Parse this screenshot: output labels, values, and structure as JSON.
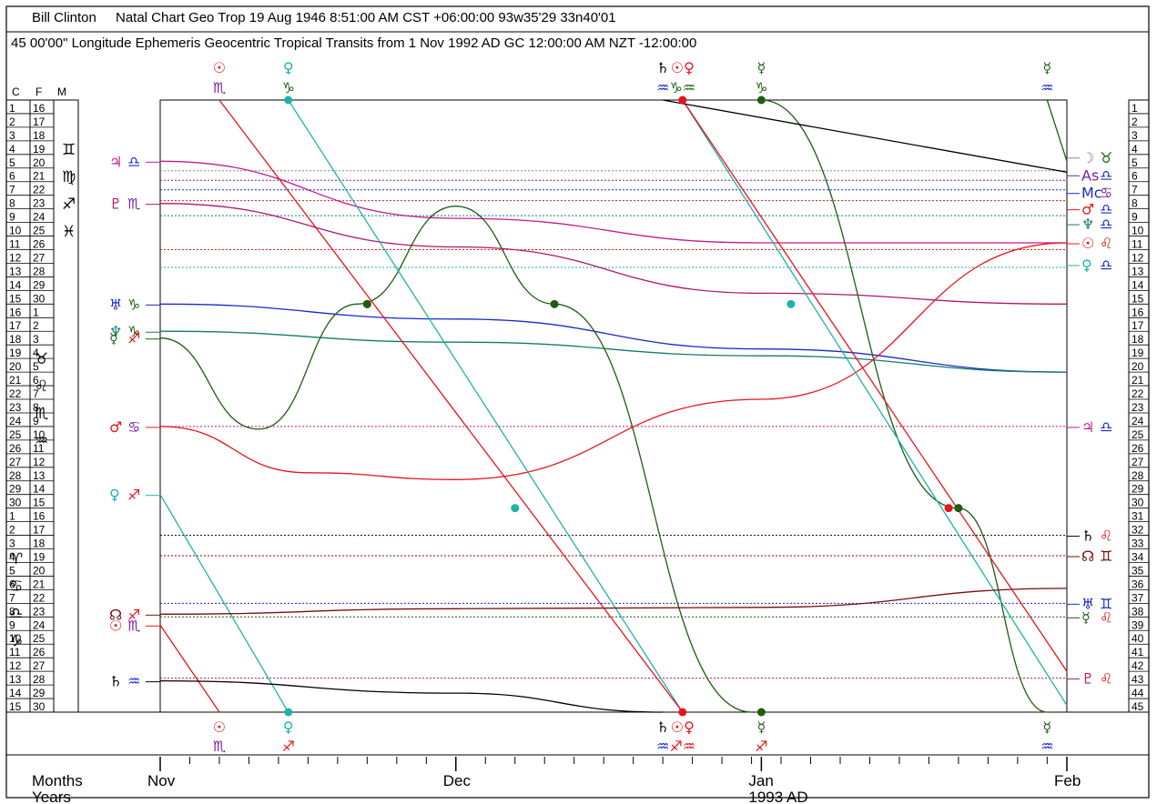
{
  "header": {
    "line1_name": "Bill Clinton",
    "line1_text": "Natal Chart Geo Trop 19 Aug 1946 8:51:00 AM CST +06:00:00 93w35'29 33n40'01",
    "line2_text": "45 00'00\" Longitude Ephemeris Geocentric Tropical Transits from 1 Nov 1992 AD GC 12:00:00 AM NZT -12:00:00"
  },
  "scale_headers": [
    "C",
    "F",
    "M"
  ],
  "colors": {
    "sun": "#e8141b",
    "venus": "#1fb3a6",
    "mercury": "#1f5c12",
    "saturn": "#000000",
    "jupiter": "#c41a8c",
    "pluto": "#b0176a",
    "uranus": "#1c28c8",
    "neptune": "#0f7c6e",
    "mars": "#e8141b",
    "node": "#7a0c0c",
    "sign_blue": "#1c28c8",
    "sign_purple": "#7a1fa0",
    "sign_red": "#e8141b",
    "sign_green": "#1f5c12"
  },
  "x_axis": {
    "rows": [
      "Months",
      "Years"
    ],
    "month_labels": [
      "Nov",
      "Dec",
      "Jan",
      "Feb"
    ],
    "year_label": "1993 AD"
  },
  "left_col_labels": {
    "cardinal": [
      "1",
      "2",
      "3",
      "4",
      "5",
      "6",
      "7",
      "8",
      "9",
      "10",
      "11",
      "12",
      "13",
      "14",
      "15"
    ],
    "fixed_first": [
      "16",
      "17",
      "18",
      "19",
      "20",
      "21",
      "22",
      "23",
      "24",
      "25",
      "26",
      "27",
      "28",
      "29",
      "30"
    ],
    "signs_top": [
      "♊",
      "♍",
      "♐",
      "♓"
    ],
    "signs_mid": [
      "♉",
      "♌",
      "♏",
      "♒"
    ],
    "signs_bot": [
      "♈",
      "♋",
      "♎",
      "♑"
    ]
  },
  "right_col_labels": [
    "1",
    "2",
    "3",
    "4",
    "5",
    "6",
    "7",
    "8",
    "9",
    "10",
    "11",
    "12",
    "13",
    "14",
    "15",
    "16",
    "17",
    "18",
    "19",
    "20",
    "21",
    "22",
    "23",
    "24",
    "25",
    "26",
    "27",
    "28",
    "29",
    "30",
    "31",
    "32",
    "33",
    "34",
    "35",
    "36",
    "37",
    "38",
    "39",
    "40",
    "41",
    "42",
    "43",
    "44",
    "45"
  ],
  "left_planets": [
    {
      "planet": "♃",
      "sign": "♎",
      "planet_color": "#c41a8c",
      "sign_color": "#1c28c8"
    },
    {
      "planet": "♇",
      "sign": "♏",
      "planet_color": "#b0176a",
      "sign_color": "#7a1fa0"
    },
    {
      "planet": "♅",
      "sign": "♑",
      "planet_color": "#1c28c8",
      "sign_color": "#1f5c12"
    },
    {
      "planet": "♆",
      "sign": "♑",
      "planet_color": "#0f7c6e",
      "sign_color": "#1f5c12"
    },
    {
      "planet": "☿",
      "sign": "♐",
      "planet_color": "#1f5c12",
      "sign_color": "#e8141b"
    },
    {
      "planet": "♂",
      "sign": "♋",
      "planet_color": "#e8141b",
      "sign_color": "#7a1fa0"
    },
    {
      "planet": "♀",
      "sign": "♐",
      "planet_color": "#1fb3a6",
      "sign_color": "#e8141b"
    },
    {
      "planet": "☊",
      "sign": "♐",
      "planet_color": "#7a0c0c",
      "sign_color": "#e8141b"
    },
    {
      "planet": "☉",
      "sign": "♏",
      "planet_color": "#e8141b",
      "sign_color": "#7a1fa0"
    },
    {
      "planet": "♄",
      "sign": "♒",
      "planet_color": "#000000",
      "sign_color": "#1c28c8"
    }
  ],
  "right_natal": [
    {
      "planet": "☽",
      "sign": "♉",
      "planet_color": "#888888",
      "sign_color": "#1f5c12"
    },
    {
      "planet": "As",
      "sign": "♎",
      "planet_color": "#7a1fa0",
      "sign_color": "#1c28c8"
    },
    {
      "planet": "Mc",
      "sign": "♋",
      "planet_color": "#1c28c8",
      "sign_color": "#7a1fa0"
    },
    {
      "planet": "♂",
      "sign": "♎",
      "planet_color": "#e8141b",
      "sign_color": "#1c28c8"
    },
    {
      "planet": "♆",
      "sign": "♎",
      "planet_color": "#0f7c6e",
      "sign_color": "#1c28c8"
    },
    {
      "planet": "☉",
      "sign": "♌",
      "planet_color": "#e8141b",
      "sign_color": "#e8141b"
    },
    {
      "planet": "♀",
      "sign": "♎",
      "planet_color": "#1fb3a6",
      "sign_color": "#1c28c8"
    },
    {
      "planet": "♃",
      "sign": "♎",
      "planet_color": "#c41a8c",
      "sign_color": "#1c28c8"
    },
    {
      "planet": "♄",
      "sign": "♌",
      "planet_color": "#000000",
      "sign_color": "#e8141b"
    },
    {
      "planet": "☊",
      "sign": "♊",
      "planet_color": "#7a0c0c",
      "sign_color": "#7a0c0c"
    },
    {
      "planet": "♅",
      "sign": "♊",
      "planet_color": "#1c28c8",
      "sign_color": "#1c28c8"
    },
    {
      "planet": "☿",
      "sign": "♌",
      "planet_color": "#1f5c12",
      "sign_color": "#e8141b"
    },
    {
      "planet": "♇",
      "sign": "♌",
      "planet_color": "#b0176a",
      "sign_color": "#e8141b"
    }
  ],
  "top_labels": [
    {
      "planet": "☉",
      "sign": "♏",
      "planet_color": "#e8141b",
      "sign_color": "#7a1fa0"
    },
    {
      "planet": "♀",
      "sign": "♑",
      "planet_color": "#1fb3a6",
      "sign_color": "#1f5c12"
    },
    {
      "planet": "♄",
      "sign": "♒",
      "planet_color": "#000000",
      "sign_color": "#1c28c8"
    },
    {
      "planet": "☉♀",
      "sign": "♑♒",
      "planet_color": "#e8141b",
      "sign_color": "#1f5c12"
    },
    {
      "planet": "☿",
      "sign": "♑",
      "planet_color": "#1f5c12",
      "sign_color": "#1f5c12"
    },
    {
      "planet": "☿",
      "sign": "♒",
      "planet_color": "#1f5c12",
      "sign_color": "#1c28c8"
    }
  ],
  "bottom_labels": [
    {
      "planet": "☉",
      "sign": "♏",
      "planet_color": "#e8141b",
      "sign_color": "#7a1fa0"
    },
    {
      "planet": "♀",
      "sign": "♐",
      "planet_color": "#1fb3a6",
      "sign_color": "#e8141b"
    },
    {
      "planet": "♄",
      "sign": "♒",
      "planet_color": "#000000",
      "sign_color": "#1c28c8"
    },
    {
      "planet": "☉♀",
      "sign": "♐♒",
      "planet_color": "#e8141b",
      "sign_color": "#e8141b"
    },
    {
      "planet": "☿",
      "sign": "♐",
      "planet_color": "#1f5c12",
      "sign_color": "#e8141b"
    },
    {
      "planet": "☿",
      "sign": "♒",
      "planet_color": "#1f5c12",
      "sign_color": "#1c28c8"
    }
  ],
  "chart_data": {
    "type": "line",
    "x_unit": "date",
    "xlim": [
      "1992-11-01",
      "1993-02-01"
    ],
    "ylim": [
      0,
      45
    ],
    "y_unit": "degrees (45° modulus)",
    "natal_lines": [
      {
        "name": "Moon",
        "value": 5.2
      },
      {
        "name": "Asc",
        "value": 5.9
      },
      {
        "name": "MC",
        "value": 6.6
      },
      {
        "name": "Mars",
        "value": 7.4
      },
      {
        "name": "Neptune",
        "value": 8.5
      },
      {
        "name": "Sun",
        "value": 11.0
      },
      {
        "name": "Venus",
        "value": 12.3
      },
      {
        "name": "Jupiter",
        "value": 24.0
      },
      {
        "name": "Saturn",
        "value": 32.0
      },
      {
        "name": "Node",
        "value": 33.5
      },
      {
        "name": "Uranus",
        "value": 37.0
      },
      {
        "name": "Mercury",
        "value": 38.0
      },
      {
        "name": "Pluto",
        "value": 42.5
      }
    ],
    "series": [
      {
        "name": "Jupiter",
        "points": [
          [
            "1992-11-01",
            4.5
          ],
          [
            "1992-12-01",
            8.7
          ],
          [
            "1993-01-01",
            10.5
          ],
          [
            "1993-02-01",
            10.5
          ]
        ]
      },
      {
        "name": "Pluto",
        "points": [
          [
            "1992-11-01",
            7.6
          ],
          [
            "1992-12-01",
            10.8
          ],
          [
            "1993-01-01",
            14.2
          ],
          [
            "1993-02-01",
            15.0
          ]
        ]
      },
      {
        "name": "Uranus",
        "points": [
          [
            "1992-11-01",
            15.0
          ],
          [
            "1992-12-01",
            16.1
          ],
          [
            "1993-01-01",
            18.3
          ],
          [
            "1993-02-01",
            20.0
          ]
        ]
      },
      {
        "name": "Neptune",
        "points": [
          [
            "1992-11-01",
            17.0
          ],
          [
            "1992-12-01",
            17.8
          ],
          [
            "1993-01-01",
            18.8
          ],
          [
            "1993-02-01",
            20.0
          ]
        ]
      },
      {
        "name": "Mercury",
        "points": [
          [
            "1992-11-01",
            17.5
          ],
          [
            "1992-11-11",
            24.2
          ],
          [
            "1992-11-21",
            15.0
          ],
          [
            "1992-12-01",
            7.8
          ],
          [
            "1992-12-11",
            15.0
          ],
          [
            "1992-12-31",
            45.0
          ]
        ]
      },
      {
        "name": "Mercury2",
        "points": [
          [
            "1993-01-01",
            0.0
          ],
          [
            "1993-01-21",
            30.0
          ],
          [
            "1993-01-30",
            45.0
          ]
        ]
      },
      {
        "name": "Mercury3",
        "points": [
          [
            "1993-01-30",
            0.0
          ],
          [
            "1993-02-01",
            4.5
          ]
        ]
      },
      {
        "name": "Mars",
        "points": [
          [
            "1992-11-01",
            24.0
          ],
          [
            "1992-11-16",
            27.4
          ],
          [
            "1992-12-01",
            27.9
          ],
          [
            "1993-01-01",
            22.0
          ],
          [
            "1993-02-01",
            10.5
          ]
        ]
      },
      {
        "name": "Venus",
        "points": [
          [
            "1992-11-01",
            29.0
          ],
          [
            "1992-11-14",
            45.0
          ]
        ]
      },
      {
        "name": "Venus2",
        "points": [
          [
            "1992-11-14",
            0.0
          ],
          [
            "1992-12-24",
            45.0
          ]
        ]
      },
      {
        "name": "Venus3",
        "points": [
          [
            "1992-12-24",
            0.0
          ],
          [
            "1993-02-01",
            44.5
          ]
        ]
      },
      {
        "name": "Node",
        "points": [
          [
            "1992-11-01",
            37.8
          ],
          [
            "1992-12-01",
            37.4
          ],
          [
            "1993-01-01",
            37.3
          ],
          [
            "1993-02-01",
            35.9
          ]
        ]
      },
      {
        "name": "Sun",
        "points": [
          [
            "1992-11-01",
            38.6
          ],
          [
            "1992-11-07",
            45.0
          ]
        ]
      },
      {
        "name": "Sun2",
        "points": [
          [
            "1992-11-07",
            0.0
          ],
          [
            "1992-12-24",
            45.0
          ]
        ]
      },
      {
        "name": "Sun3",
        "points": [
          [
            "1992-12-24",
            0.0
          ],
          [
            "1993-02-01",
            42.0
          ]
        ]
      },
      {
        "name": "Saturn",
        "points": [
          [
            "1992-11-01",
            42.7
          ],
          [
            "1992-12-01",
            43.6
          ],
          [
            "1992-12-22",
            45.0
          ]
        ]
      },
      {
        "name": "Saturn2",
        "points": [
          [
            "1992-12-22",
            0.0
          ],
          [
            "1993-02-01",
            5.3
          ]
        ]
      }
    ],
    "events": [
      {
        "date": "1992-11-22",
        "value": 15.0
      },
      {
        "date": "1992-11-22",
        "value": 15.0
      },
      {
        "date": "1992-12-11",
        "value": 15.0
      },
      {
        "date": "1993-01-04",
        "value": 15.0
      },
      {
        "date": "1992-12-07",
        "value": 30.0
      },
      {
        "date": "1993-01-20",
        "value": 30.0
      },
      {
        "date": "1993-01-21",
        "value": 30.0
      }
    ]
  }
}
